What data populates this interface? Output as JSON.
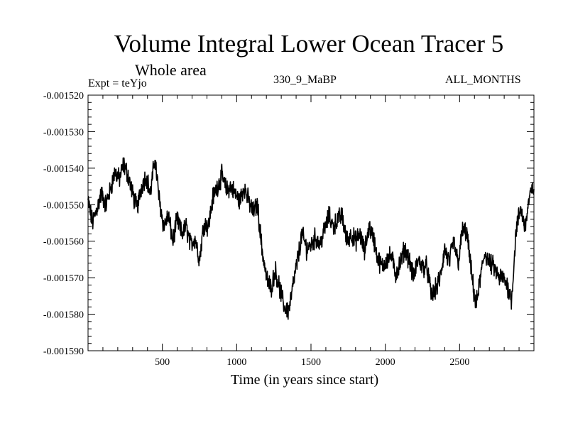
{
  "header": {
    "title": "Volume Integral Lower Ocean Tracer 5",
    "subtitle": "Whole area",
    "expt": "Expt = teYjo",
    "run_label": "330_9_MaBP",
    "months_label": "ALL_MONTHS"
  },
  "chart_data": {
    "type": "line",
    "title": "Volume Integral Lower Ocean Tracer 5",
    "subtitle": "Whole area",
    "xlabel": "Time (in years since start)",
    "ylabel": "",
    "xlim": [
      0,
      3000
    ],
    "ylim": [
      -0.00159,
      -0.00152
    ],
    "x_ticks": [
      500,
      1000,
      1500,
      2000,
      2500
    ],
    "x_tick_labels": [
      "500",
      "1000",
      "1500",
      "2000",
      "2500"
    ],
    "y_ticks": [
      -0.00152,
      -0.00153,
      -0.00154,
      -0.00155,
      -0.00156,
      -0.00157,
      -0.00158,
      -0.00159
    ],
    "y_tick_labels": [
      "-0.001520",
      "-0.001530",
      "-0.001540",
      "-0.001550",
      "-0.001560",
      "-0.001570",
      "-0.001580",
      "-0.001590"
    ],
    "grid": false,
    "series": [
      {
        "name": "Lower Ocean Tracer 5",
        "color": "#000000",
        "x": [
          0,
          30,
          60,
          90,
          120,
          150,
          180,
          210,
          240,
          270,
          300,
          330,
          360,
          390,
          420,
          450,
          480,
          510,
          540,
          570,
          600,
          630,
          660,
          690,
          720,
          750,
          780,
          810,
          840,
          870,
          900,
          930,
          960,
          990,
          1020,
          1050,
          1080,
          1110,
          1140,
          1170,
          1200,
          1230,
          1260,
          1290,
          1320,
          1350,
          1380,
          1410,
          1440,
          1470,
          1500,
          1530,
          1560,
          1590,
          1620,
          1650,
          1680,
          1710,
          1740,
          1770,
          1800,
          1830,
          1860,
          1890,
          1920,
          1950,
          1980,
          2010,
          2040,
          2070,
          2100,
          2130,
          2160,
          2190,
          2220,
          2250,
          2280,
          2310,
          2340,
          2370,
          2400,
          2430,
          2460,
          2490,
          2520,
          2550,
          2580,
          2610,
          2640,
          2670,
          2700,
          2730,
          2760,
          2790,
          2820,
          2850,
          2880,
          2910,
          2940,
          2970,
          3000
        ],
        "values": [
          -0.001549,
          -0.001555,
          -0.001551,
          -0.001547,
          -0.00155,
          -0.001546,
          -0.001541,
          -0.001543,
          -0.001539,
          -0.001542,
          -0.001547,
          -0.001551,
          -0.001545,
          -0.001542,
          -0.001547,
          -0.001537,
          -0.001549,
          -0.001556,
          -0.001553,
          -0.00156,
          -0.001554,
          -0.001558,
          -0.001556,
          -0.001561,
          -0.001559,
          -0.001565,
          -0.001555,
          -0.001556,
          -0.001548,
          -0.001545,
          -0.001542,
          -0.001546,
          -0.001545,
          -0.001547,
          -0.001549,
          -0.001545,
          -0.001549,
          -0.001552,
          -0.00155,
          -0.001562,
          -0.00157,
          -0.001573,
          -0.001568,
          -0.001573,
          -0.001578,
          -0.001579,
          -0.001572,
          -0.001565,
          -0.001558,
          -0.001562,
          -0.001561,
          -0.001559,
          -0.001561,
          -0.001557,
          -0.001553,
          -0.001556,
          -0.001554,
          -0.001553,
          -0.00156,
          -0.001558,
          -0.00156,
          -0.001558,
          -0.001563,
          -0.001556,
          -0.001559,
          -0.001565,
          -0.001567,
          -0.001565,
          -0.001564,
          -0.001569,
          -0.001566,
          -0.001562,
          -0.001565,
          -0.00157,
          -0.001565,
          -0.001567,
          -0.001567,
          -0.001575,
          -0.001573,
          -0.00157,
          -0.001562,
          -0.001566,
          -0.00156,
          -0.001566,
          -0.001557,
          -0.001558,
          -0.001569,
          -0.001578,
          -0.00157,
          -0.001563,
          -0.001566,
          -0.001567,
          -0.00157,
          -0.00157,
          -0.001572,
          -0.001576,
          -0.001557,
          -0.001551,
          -0.001556,
          -0.001548,
          -0.001545
        ]
      }
    ]
  }
}
